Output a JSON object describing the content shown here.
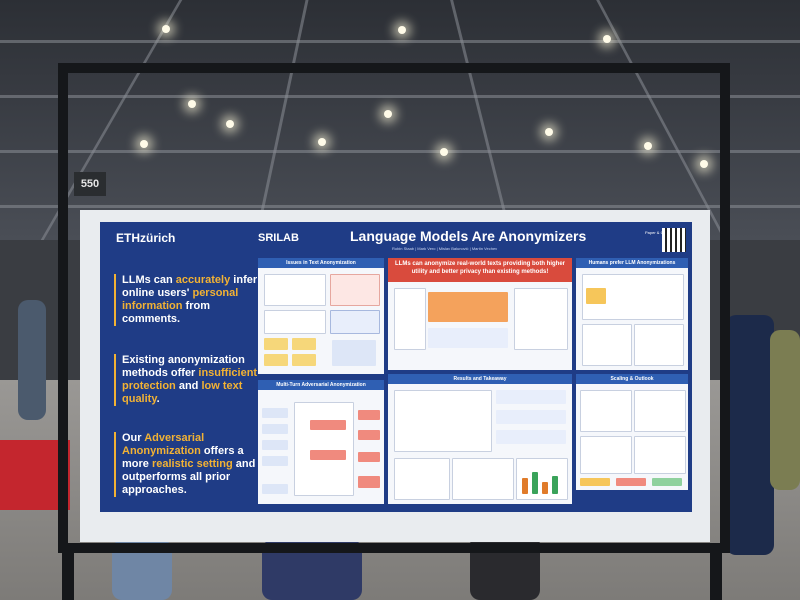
{
  "booth": {
    "number": "550"
  },
  "poster": {
    "logo_eth": "ETHzürich",
    "logo_sri": "SRILAB",
    "title": "Language Models Are Anonymizers",
    "authors": "Robin Staab  |  Mark Vero  |  Mislav Balunović  |  Martin Vechev",
    "qr_label": "Paper & Code",
    "claims": [
      {
        "before": "LLMs can ",
        "hl1": "accurately",
        "mid": " infer online users' ",
        "hl2": "personal information",
        "after": " from comments."
      },
      {
        "before": "Existing anonymization methods offer ",
        "hl1": "insufficient protection",
        "mid": " and ",
        "hl2": "low text quality",
        "after": "."
      },
      {
        "before": "Our ",
        "hl1": "Adversarial Anonymization",
        "mid": " offers a more ",
        "hl2": "realistic setting",
        "after": " and outperforms all prior approaches."
      }
    ],
    "panels": {
      "issues": "Issues in Text Anonymization",
      "multiturn": "Multi-Turn Adversarial Anonymization",
      "headline": "LLMs can anonymize real-world texts providing both higher utility and better privacy than existing methods!",
      "results": "Results and Takeaway",
      "humans": "Humans prefer LLM Anonymizations",
      "scaling": "Scaling & Outlook"
    }
  }
}
